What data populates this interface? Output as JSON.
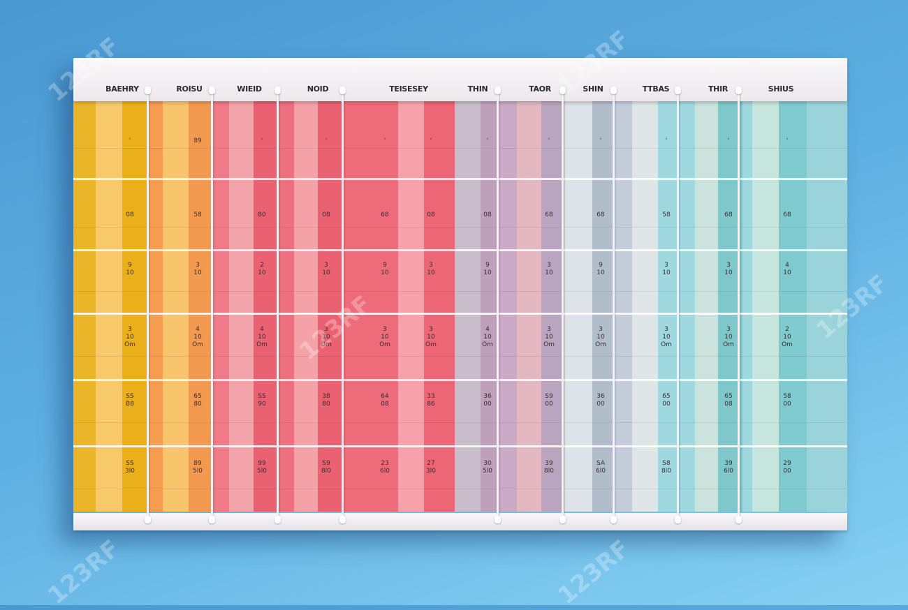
{
  "board": {
    "header_labels": [
      "BAEHRY",
      "ROISU",
      "WIEID",
      "NOID",
      "TEISESEY",
      "THIN",
      "TAOR",
      "SHIN",
      "TTBAS",
      "THIR",
      "SHIUS"
    ],
    "stripe_colors": [
      "#ebb52a",
      "#f7c96a",
      "#ebb019",
      "#f79d50",
      "#f8c46c",
      "#f39a50",
      "#f07a87",
      "#f3a3aa",
      "#ea6172",
      "#ee707f",
      "#f4a1a8",
      "#ea6172",
      "#ee6b79",
      "#f7a2aa",
      "#ec6675",
      "#c9bccb",
      "#bfa0bb",
      "#caaac6",
      "#e3b8c0",
      "#b9a5c0",
      "#dde3e8",
      "#b2bdcc",
      "#c4cbd9",
      "#e0e6e8",
      "#a0d8e0",
      "#cbe3dc",
      "#7ec8cc",
      "#9ed7dd",
      "#c6e6dd",
      "#7ecace",
      "#9ad4da"
    ],
    "cell_rows": [
      [
        "'",
        "89",
        "'",
        "'",
        "'",
        "'",
        "'",
        "'",
        "'",
        "'",
        "'",
        "'"
      ],
      [
        "08",
        "58",
        "80",
        "08",
        "68",
        "08",
        "08",
        "68",
        "68",
        "58",
        "68",
        "68"
      ],
      [
        "9\n10",
        "3\n10",
        "2\n10",
        "3\n10",
        "9\n10",
        "3\n10",
        "9\n10",
        "3\n10",
        "9\n10",
        "3\n10",
        "3\n10",
        "4\n10"
      ],
      [
        "3\n10\nOm",
        "4\n10\nOm",
        "4\n10\nOm",
        "3\n10\nOm",
        "3\n10\nOm",
        "3\n10\nOm",
        "4\n10\nOm",
        "3\n10\nOm",
        "3\n10\nOm",
        "3\n10\nOm",
        "3\n10\nOm",
        "2\n10\nOm"
      ],
      [
        "SS\nB8",
        "65\n80",
        "SS\n90",
        "38\n80",
        "64\n08",
        "33\n86",
        "36\n00",
        "S9\n00",
        "36\n00",
        "65\n00",
        "65\n08",
        "58\n00"
      ],
      [
        "SS\n3l0",
        "89\n5l0",
        "99\n5l0",
        "S9\n8l0",
        "23\n6l0",
        "27\n3l0",
        "30\n5l0",
        "39\n8l0",
        "SA\n6l0",
        "S8\n8l0",
        "39\n6l0",
        "29\n00"
      ]
    ]
  },
  "watermark": "123RF"
}
